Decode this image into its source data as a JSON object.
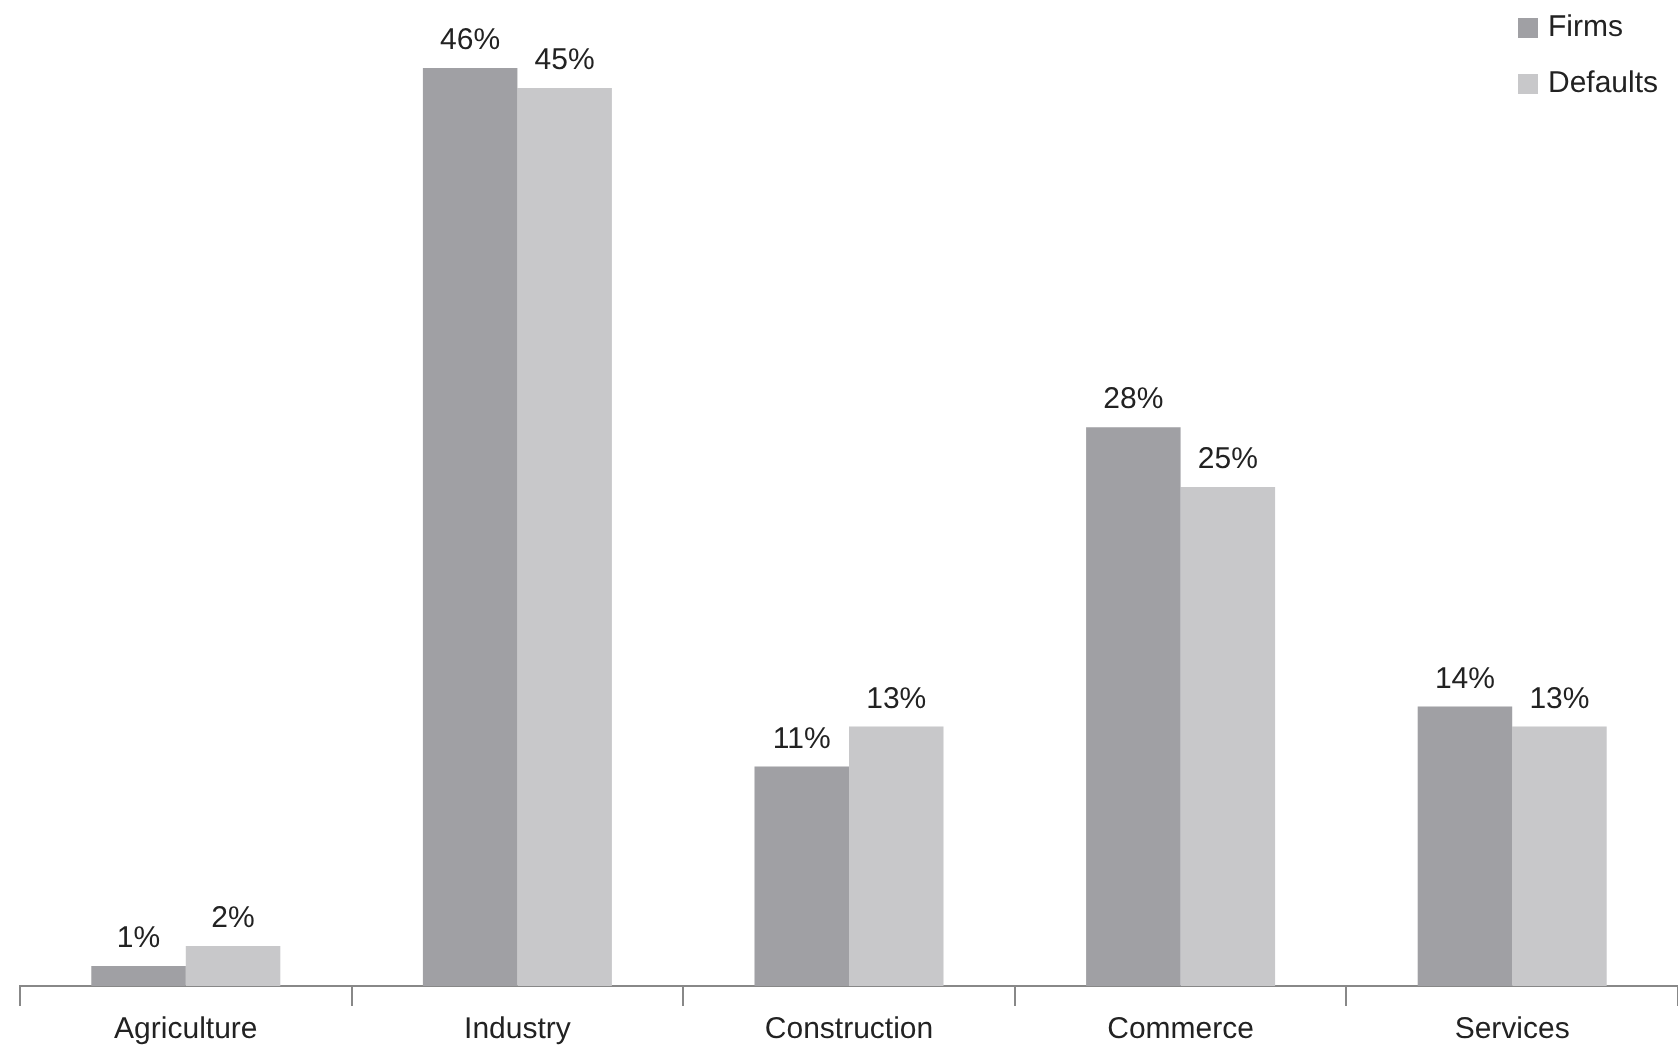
{
  "chart_data": {
    "type": "bar",
    "categories": [
      "Agriculture",
      "Industry",
      "Construction",
      "Commerce",
      "Services"
    ],
    "series": [
      {
        "name": "Firms",
        "color": "#a0a0a4",
        "values": [
          1,
          46,
          11,
          28,
          14
        ],
        "value_labels": [
          "1%",
          "46%",
          "11%",
          "28%",
          "14%"
        ]
      },
      {
        "name": "Defaults",
        "color": "#c8c8ca",
        "values": [
          2,
          45,
          13,
          25,
          13
        ],
        "value_labels": [
          "2%",
          "45%",
          "13%",
          "25%",
          "13%"
        ]
      }
    ],
    "tick_labels": "x",
    "legend": "top right",
    "grid": false
  }
}
